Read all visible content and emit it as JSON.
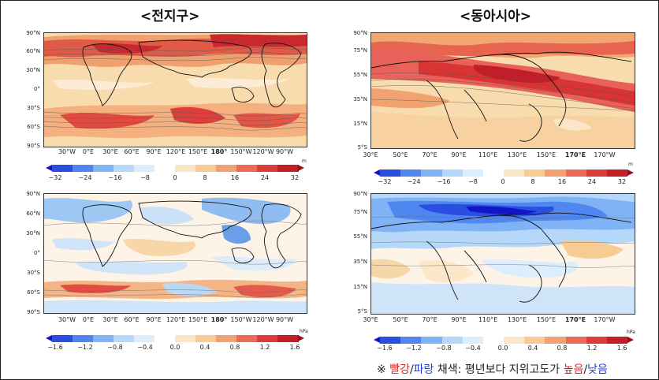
{
  "titles": {
    "global": "<전지구>",
    "east_asia": "<동아시아>"
  },
  "global": {
    "lat_labels": [
      "90°N",
      "60°N",
      "30°N",
      "0°",
      "30°S",
      "60°S",
      "90°S"
    ],
    "lon_labels": [
      "30°W",
      "0°E",
      "30°E",
      "60°E",
      "90°E",
      "120°E",
      "150°E",
      "180°",
      "150°W",
      "120°W",
      "90°W"
    ],
    "height_colorbar": {
      "ticks": [
        "−32",
        "−24",
        "−16",
        "−8",
        "0",
        "8",
        "16",
        "24",
        "32"
      ],
      "unit": "m"
    },
    "pressure_colorbar": {
      "ticks": [
        "−1.6",
        "−1.2",
        "−0.8",
        "−0.4",
        "0.0",
        "0.4",
        "0.8",
        "1.2",
        "1.6"
      ],
      "unit": "hPa"
    }
  },
  "east_asia": {
    "lat_labels": [
      "90°N",
      "75°N",
      "55°N",
      "35°N",
      "15°N",
      "5°S"
    ],
    "lat_labels_bottom": [
      "90°N",
      "75°N",
      "55°N",
      "35°N",
      "15°N",
      "5°S"
    ],
    "lon_labels": [
      "30°E",
      "50°E",
      "70°E",
      "90°E",
      "110°E",
      "130°E",
      "150°E",
      "170°E",
      "170°W"
    ],
    "height_colorbar": {
      "ticks": [
        "−32",
        "−24",
        "−16",
        "−8",
        "0",
        "8",
        "16",
        "24",
        "32"
      ],
      "unit": "m"
    },
    "pressure_colorbar": {
      "ticks": [
        "−1.6",
        "−1.2",
        "−0.8",
        "−0.4",
        "0.0",
        "0.4",
        "0.8",
        "1.2",
        "1.6"
      ],
      "unit": "hPa"
    }
  },
  "footnote": {
    "prefix": "※ ",
    "red_word": "빨강",
    "slash1": "/",
    "blue_word": "파랑",
    "middle": " 채색: 평년보다 지위고도가 ",
    "high_word": "높음",
    "slash2": "/",
    "low_word": "낮음"
  },
  "colors": {
    "scale": [
      "#1515c8",
      "#2a4fe0",
      "#4f86ef",
      "#7fb3f6",
      "#b5d8fa",
      "#dcedfb",
      "#ffffff",
      "#fbe6c8",
      "#f7cb91",
      "#f1a070",
      "#ea6a55",
      "#dd3a3a",
      "#c41f27",
      "#9c0d1b"
    ]
  }
}
